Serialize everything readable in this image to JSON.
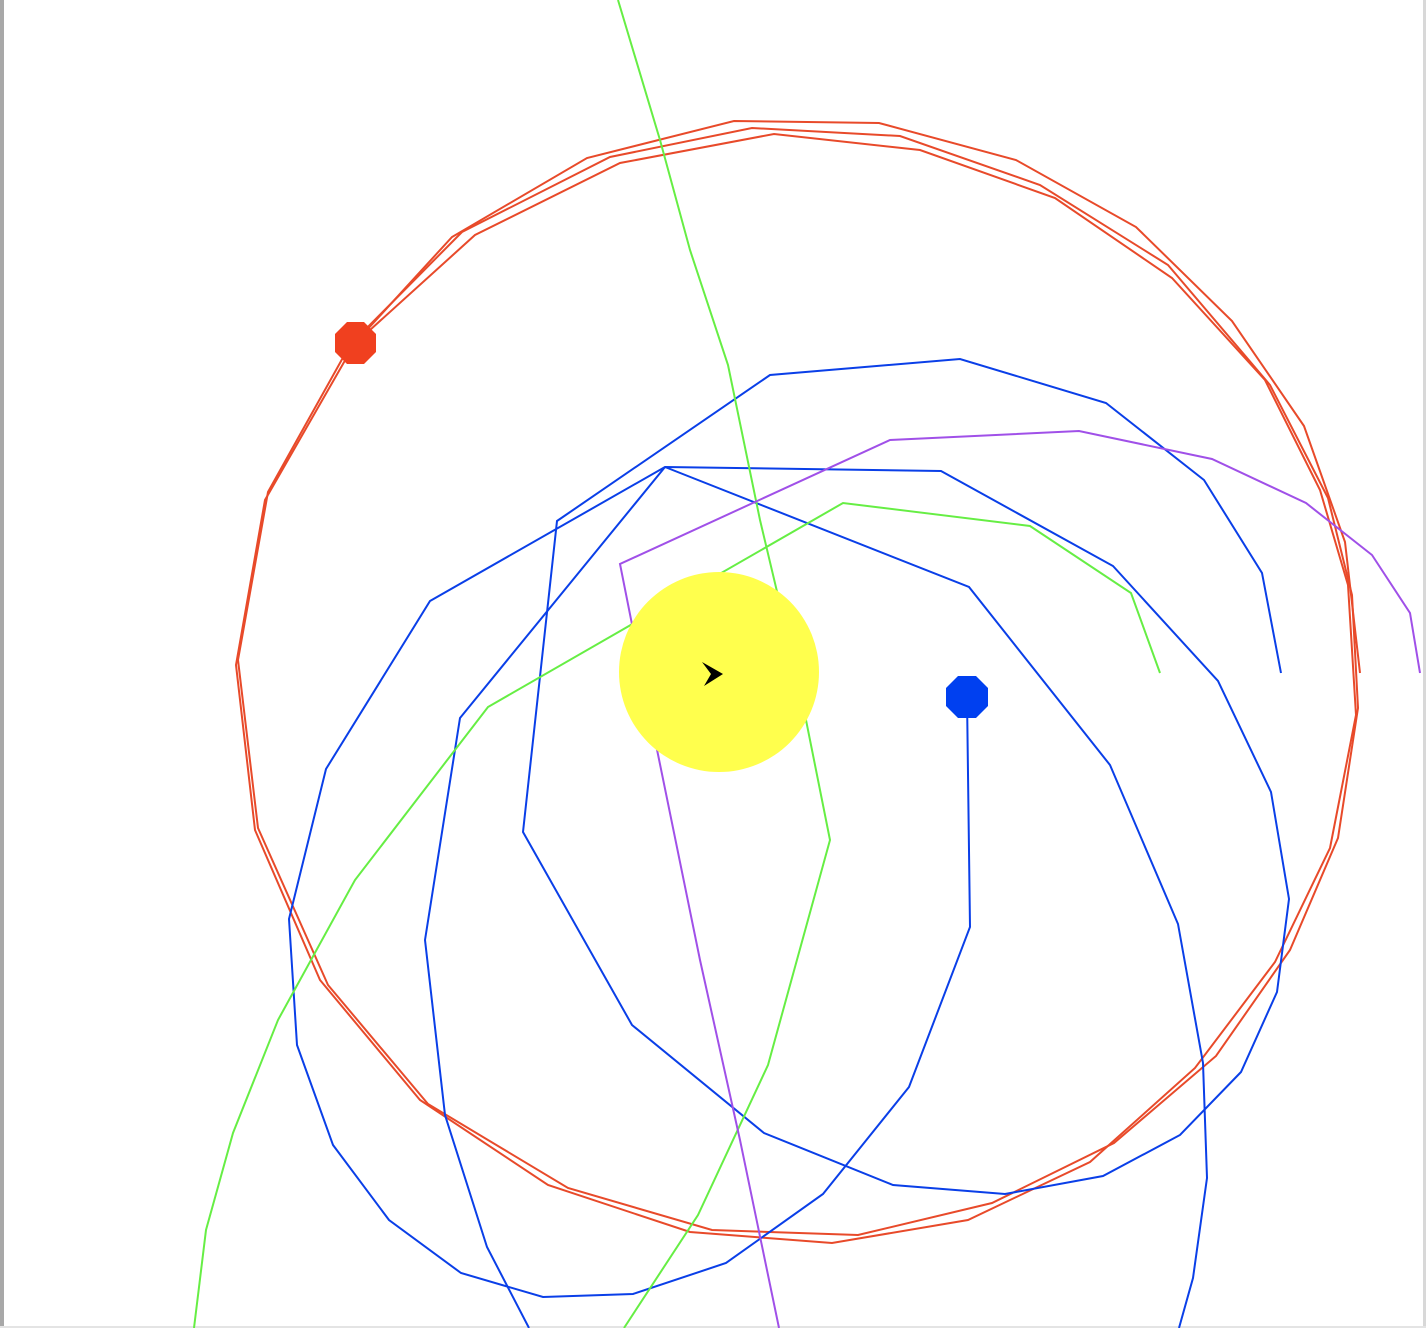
{
  "colors": {
    "background": "#ffffff",
    "sun": "#ffff4d",
    "red_planet": "#f0401f",
    "red_orbit": "#e84a2a",
    "blue_planet": "#0040f0",
    "blue_orbit": "#0a3fe8",
    "green_trail": "#66ee44",
    "purple_trail": "#a050e8",
    "ship": "#000000"
  },
  "bodies": {
    "sun": "sun",
    "ship": "ship-arrow-icon",
    "red_planet": "red-planet",
    "blue_planet": "blue-planet"
  }
}
